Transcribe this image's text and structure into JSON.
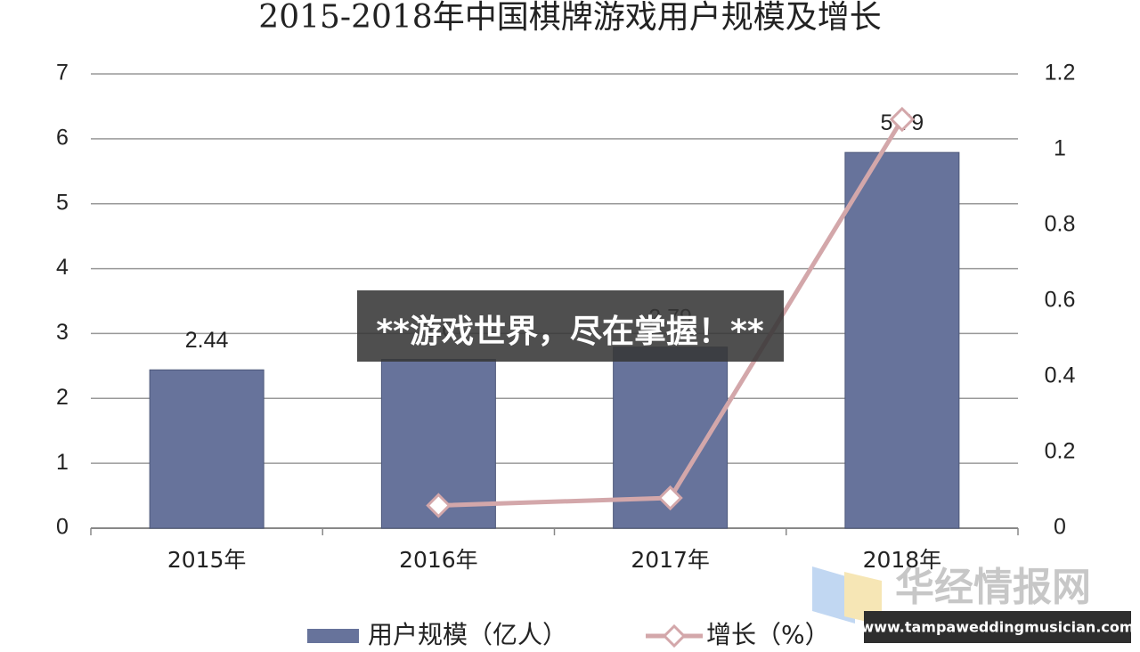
{
  "chart_data": {
    "type": "bar-line",
    "title": "2015-2018年中国棋牌游戏用户规模及增长",
    "categories": [
      "2015年",
      "2016年",
      "2017年",
      "2018年"
    ],
    "series": [
      {
        "name": "用户规模（亿人）",
        "type": "bar",
        "color": "#67739b",
        "values": [
          2.44,
          2.6,
          2.79,
          5.79
        ]
      },
      {
        "name": "增长（%）",
        "type": "line",
        "axis": "y2",
        "color": "#d3a7aa",
        "values": [
          null,
          0.06,
          0.08,
          1.08
        ]
      }
    ],
    "ylim": [
      0,
      7
    ],
    "yticks": [
      0,
      1,
      2,
      3,
      4,
      5,
      6,
      7
    ],
    "y2lim": [
      0,
      1.2
    ],
    "y2ticks": [
      0,
      0.2,
      0.4,
      0.6,
      0.8,
      1,
      1.2
    ],
    "grid": true,
    "legend": "bottom"
  },
  "overlay": {
    "banner": "**游戏世界，尽在掌握！**",
    "watermark": "华经情报网",
    "url": "www.tampaweddingmusician.com"
  }
}
